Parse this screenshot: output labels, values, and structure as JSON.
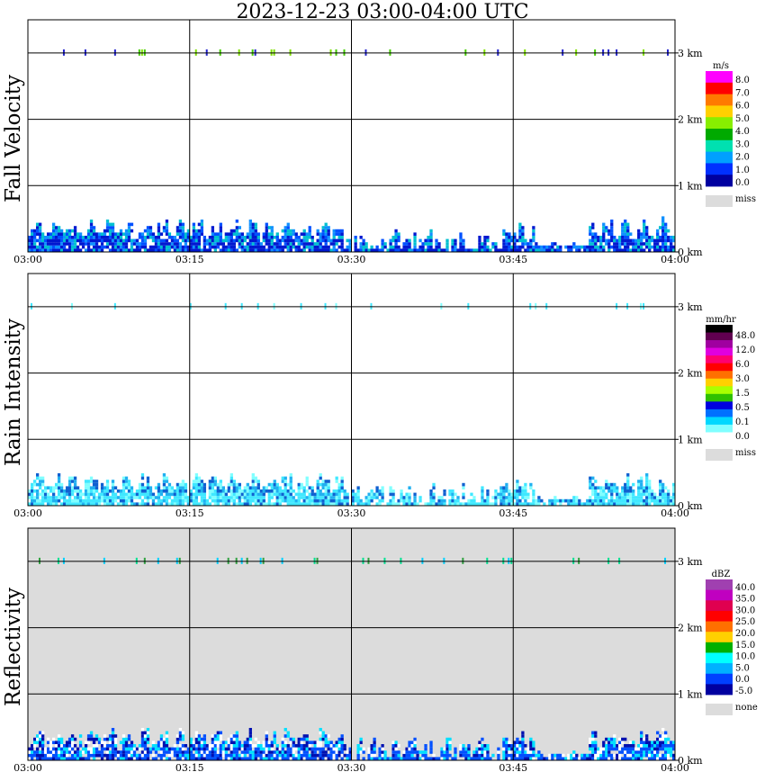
{
  "title": "2023-12-23   03:00-04:00 UTC",
  "chart_data": [
    {
      "type": "heatmap",
      "ylabel": "Fall Velocity",
      "xlabel": "",
      "x_ticks": [
        "03:00",
        "03:15",
        "03:30",
        "03:45",
        "04:00"
      ],
      "y_ticks": [
        "0 km",
        "1 km",
        "2 km",
        "3 km"
      ],
      "xlim": [
        0,
        60
      ],
      "ylim": [
        0,
        3.5
      ],
      "grid": true,
      "background": "#ffffff",
      "legend": {
        "unit": "m/s",
        "placement": "right",
        "levels": [
          "8.0",
          "7.0",
          "6.0",
          "5.0",
          "4.0",
          "3.0",
          "2.0",
          "1.0",
          "0.0"
        ],
        "colors": [
          "#ff00ff",
          "#ff0000",
          "#ff7a00",
          "#ffd000",
          "#88ee00",
          "#00aa00",
          "#00e0b0",
          "#00a0ff",
          "#0030ff",
          "#0000a0"
        ],
        "missing": {
          "label": "miss",
          "color": "#dcdcdc"
        }
      },
      "field": {
        "cell_minutes": 0.25,
        "max_height_km": 0.55,
        "dominant_colors": [
          "#0050ff",
          "#0018d0",
          "#1090ff",
          "#00c0d0"
        ]
      },
      "layer_3km": {
        "height_km": 3.0,
        "colors": [
          "#44cc00",
          "#2222cc",
          "#7fe000"
        ]
      }
    },
    {
      "type": "heatmap",
      "ylabel": "Rain Intensity",
      "xlabel": "",
      "x_ticks": [
        "03:00",
        "03:15",
        "03:30",
        "03:45",
        "04:00"
      ],
      "y_ticks": [
        "0 km",
        "1 km",
        "2 km",
        "3 km"
      ],
      "xlim": [
        0,
        60
      ],
      "ylim": [
        0,
        3.5
      ],
      "grid": true,
      "background": "#ffffff",
      "legend": {
        "unit": "mm/hr",
        "placement": "right",
        "levels": [
          "48.0",
          "12.0",
          "6.0",
          "3.0",
          "1.5",
          "0.5",
          "0.1",
          "0.0"
        ],
        "colors": [
          "#000000",
          "#600050",
          "#a000a0",
          "#e000e0",
          "#ff0070",
          "#ff0000",
          "#ff7000",
          "#ffd000",
          "#aaff00",
          "#30c000",
          "#0000e0",
          "#0070ff",
          "#00d8ff",
          "#80ffff",
          "#ffffff"
        ],
        "missing": {
          "label": "miss",
          "color": "#dcdcdc"
        }
      },
      "field": {
        "cell_minutes": 0.25,
        "max_height_km": 0.55,
        "dominant_colors": [
          "#80ffff",
          "#40e8ff",
          "#20b0f0",
          "#1060d0"
        ]
      },
      "layer_3km": {
        "height_km": 3.0,
        "colors": [
          "#80ffff",
          "#40e8ff"
        ]
      }
    },
    {
      "type": "heatmap",
      "ylabel": "Reflectivity",
      "xlabel": "",
      "x_ticks": [
        "03:00",
        "03:15",
        "03:30",
        "03:45",
        "04:00"
      ],
      "y_ticks": [
        "0 km",
        "1 km",
        "2 km",
        "3 km"
      ],
      "xlim": [
        0,
        60
      ],
      "ylim": [
        0,
        3.5
      ],
      "grid": true,
      "background": "#dcdcdc",
      "legend": {
        "unit": "dBZ",
        "placement": "right",
        "levels": [
          "40.0",
          "35.0",
          "30.0",
          "25.0",
          "20.0",
          "15.0",
          "10.0",
          "5.0",
          "0.0",
          "-5.0"
        ],
        "colors": [
          "#a040b0",
          "#c000c0",
          "#e00050",
          "#ff0000",
          "#ff7000",
          "#ffd000",
          "#00b000",
          "#00ffff",
          "#00b0ff",
          "#0040ff",
          "#0000a0"
        ],
        "missing": {
          "label": "none",
          "color": "#dcdcdc"
        }
      },
      "field": {
        "cell_minutes": 0.25,
        "max_height_km": 0.55,
        "dominant_colors": [
          "#00e0ff",
          "#0050ff",
          "#0010b0",
          "#ffffff"
        ]
      },
      "layer_3km": {
        "height_km": 3.0,
        "colors": [
          "#00e090",
          "#30a040",
          "#00d0ff"
        ]
      }
    }
  ]
}
